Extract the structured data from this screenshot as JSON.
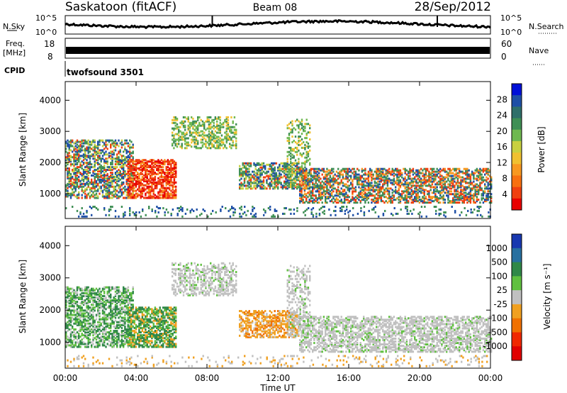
{
  "chart_data": [
    {
      "type": "heatmap",
      "title": "Saskatoon (fitACF)",
      "beam": "Beam 08",
      "date": "28/Sep/2012",
      "cpid": "twofsound 3501",
      "header": {
        "nsky_label": "N.Sky",
        "nsearch_label": "N.Search",
        "nsky_ticks": [
          "10^5",
          "10^0"
        ],
        "nsearch_ticks": [
          "10^5",
          "10^0"
        ],
        "freq_label": "Freq.",
        "freq_unit": "[MHz]",
        "freq_ticks": [
          "18",
          "8"
        ],
        "nave_label": "Nave",
        "nave_ticks": [
          "60",
          "0"
        ],
        "cpid_label": "CPID"
      },
      "xlabel": "Time UT",
      "x_ticks": [
        "00:00",
        "04:00",
        "08:00",
        "12:00",
        "16:00",
        "20:00",
        "00:00"
      ],
      "xlim": [
        0,
        24
      ]
    },
    {
      "type": "heatmap",
      "panel": "power",
      "ylabel": "Slant Range [km]",
      "ylim": [
        200,
        4600
      ],
      "y_ticks": [
        "4000",
        "3000",
        "2000",
        "1000"
      ],
      "colorbar": {
        "label": "Power [dB]",
        "ticks": [
          "28",
          "24",
          "20",
          "16",
          "12",
          "8",
          "4"
        ],
        "colors": [
          "#0010d8",
          "#1e4fa6",
          "#2f6f6a",
          "#3f8f55",
          "#6fb850",
          "#c8d040",
          "#f0c030",
          "#f89820",
          "#f87010",
          "#f04010",
          "#e80000"
        ]
      }
    },
    {
      "type": "heatmap",
      "panel": "velocity",
      "ylabel": "Slant Range [km]",
      "ylim": [
        200,
        4600
      ],
      "y_ticks": [
        "4000",
        "3000",
        "2000",
        "1000"
      ],
      "colorbar": {
        "label": "Velocity [m s⁻¹]",
        "ticks": [
          "1000",
          "500",
          "100",
          "25",
          "-25",
          "-100",
          "-500",
          "-1000"
        ],
        "colors": [
          "#1838b0",
          "#2870a0",
          "#308848",
          "#60c040",
          "#c0c0c0",
          "#f0a020",
          "#f07000",
          "#f02800",
          "#e00000"
        ]
      }
    }
  ]
}
